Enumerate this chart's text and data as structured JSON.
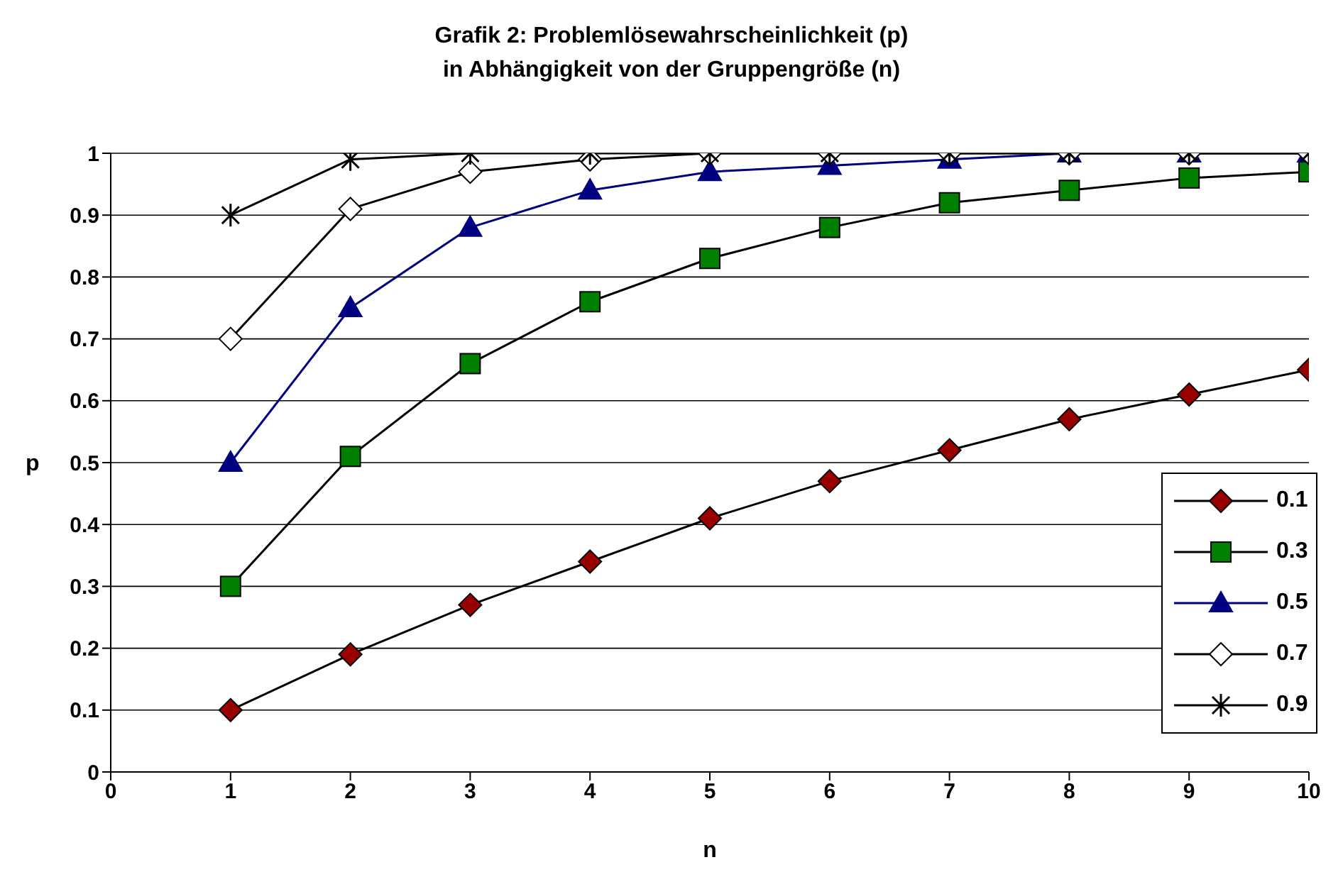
{
  "chart_data": {
    "type": "line",
    "title": "Grafik 2: Problemlösewahrscheinlichkeit (p)\nin Abhängigkeit von der Gruppengröße (n)",
    "xlabel": "n",
    "ylabel": "p",
    "x": [
      1,
      2,
      3,
      4,
      5,
      6,
      7,
      8,
      9,
      10
    ],
    "series": [
      {
        "name": "0.1",
        "color": "#990000",
        "marker": "diamond",
        "values": [
          0.1,
          0.19,
          0.27,
          0.34,
          0.41,
          0.47,
          0.52,
          0.57,
          0.61,
          0.65
        ]
      },
      {
        "name": "0.3",
        "color": "#008000",
        "marker": "square",
        "values": [
          0.3,
          0.51,
          0.66,
          0.76,
          0.83,
          0.88,
          0.92,
          0.94,
          0.96,
          0.97
        ]
      },
      {
        "name": "0.5",
        "color": "#000080",
        "marker": "triangle",
        "values": [
          0.5,
          0.75,
          0.88,
          0.94,
          0.97,
          0.98,
          0.99,
          1,
          1,
          1
        ]
      },
      {
        "name": "0.7",
        "color": "#ffffff",
        "marker": "diamond",
        "values": [
          0.7,
          0.91,
          0.97,
          0.99,
          1,
          1,
          1,
          1,
          1,
          1
        ]
      },
      {
        "name": "0.9",
        "color": "#000000",
        "marker": "cross",
        "values": [
          0.9,
          0.99,
          1,
          1,
          1,
          1,
          1,
          1,
          1,
          1
        ]
      }
    ],
    "xlim": [
      0,
      10
    ],
    "xticks": [
      0,
      1,
      2,
      3,
      4,
      5,
      6,
      7,
      8,
      9,
      10
    ],
    "ylim": [
      0,
      1
    ],
    "yticks": [
      0,
      0.1,
      0.2,
      0.3,
      0.4,
      0.5,
      0.6,
      0.7,
      0.8,
      0.9,
      1
    ],
    "grid": "y",
    "legend": "right"
  }
}
